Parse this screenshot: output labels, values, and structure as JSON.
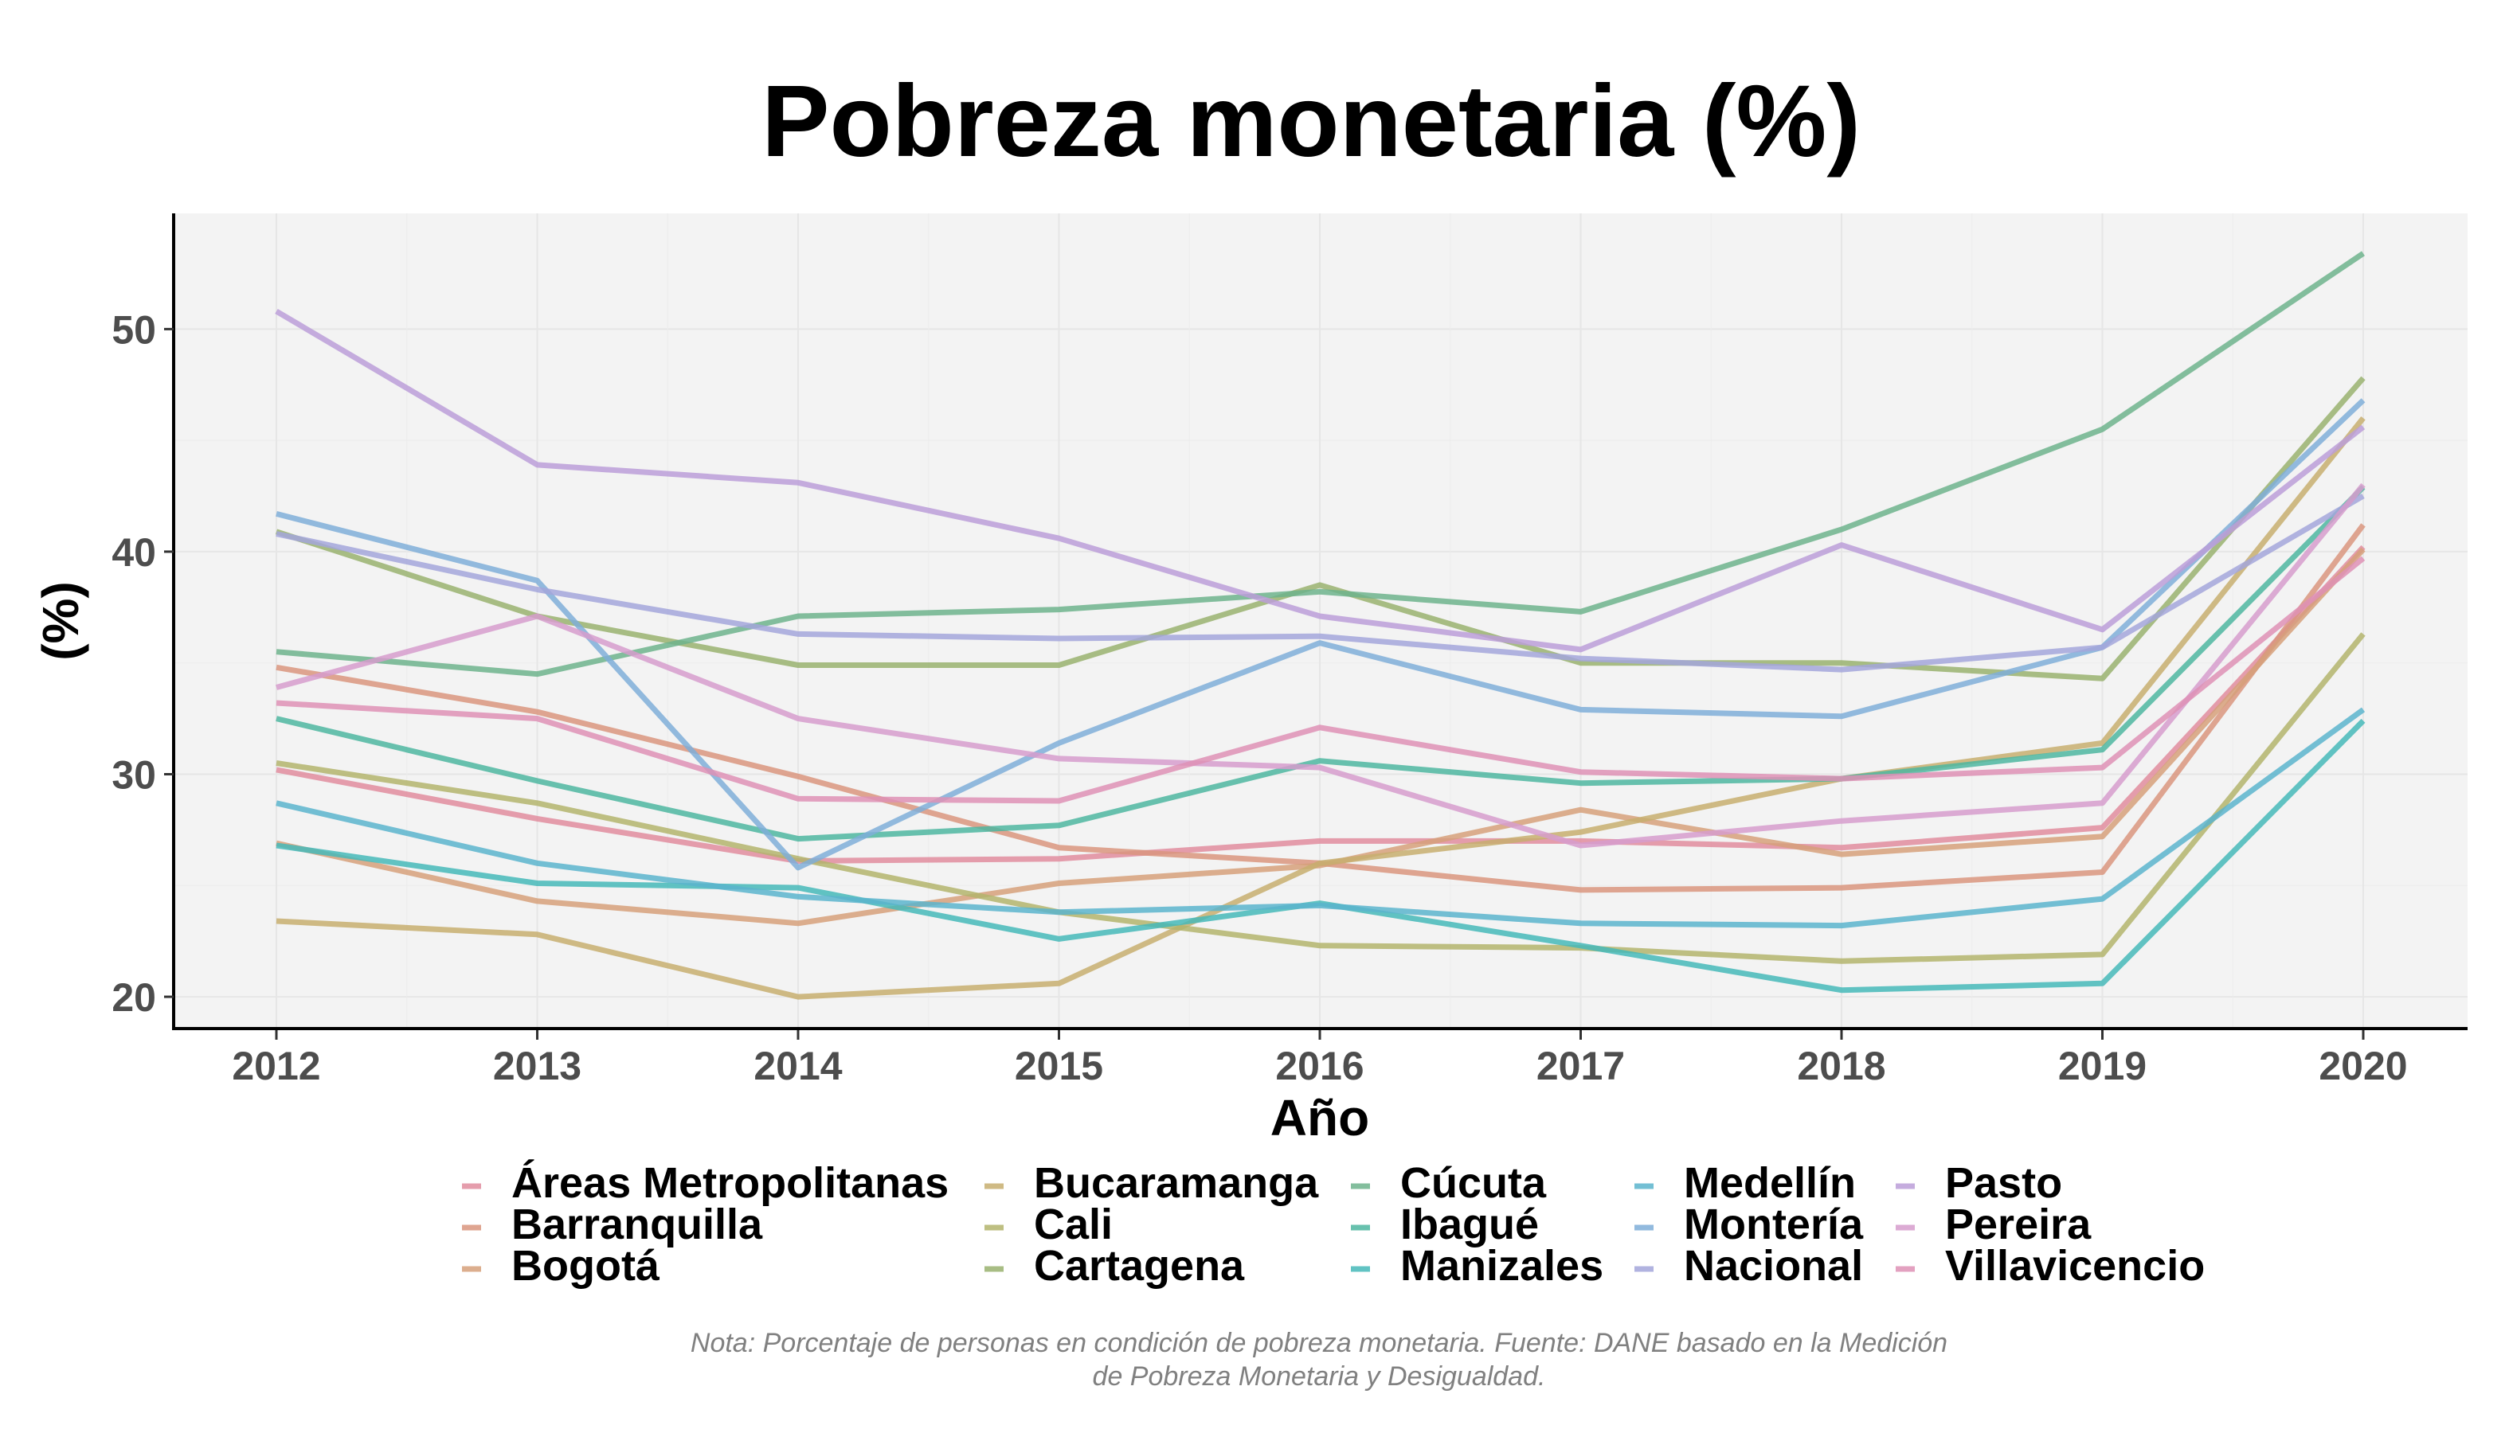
{
  "chart_data": {
    "type": "line",
    "title": "Pobreza monetaria (%)",
    "xlabel": "Año",
    "ylabel": "(%)",
    "x": [
      2012,
      2013,
      2014,
      2015,
      2016,
      2017,
      2018,
      2019,
      2020
    ],
    "x_tick_labels": [
      "2012",
      "2013",
      "2014",
      "2015",
      "2016",
      "2017",
      "2018",
      "2019",
      "2020"
    ],
    "y_ticks": [
      20,
      30,
      40,
      50
    ],
    "y_tick_labels": [
      "20",
      "30",
      "40",
      "50"
    ],
    "ylim": [
      18.5,
      55.2
    ],
    "xlim": [
      2011.6,
      2020.4
    ],
    "grid": true,
    "legend_position": "bottom",
    "note_lines": [
      "Nota: Porcentaje de personas en condición de pobreza monetaria. Fuente: DANE basado en la Medición",
      "de Pobreza Monetaria y Desigualdad."
    ],
    "series": [
      {
        "name": "Áreas Metropolitanas",
        "color": "#E08C9E",
        "values": [
          30.2,
          28.0,
          26.1,
          26.2,
          27.0,
          27.0,
          26.7,
          27.6,
          40.2
        ]
      },
      {
        "name": "Barranquilla",
        "color": "#D9957E",
        "values": [
          34.8,
          32.8,
          29.9,
          26.7,
          26.0,
          24.8,
          24.9,
          25.6,
          41.2
        ]
      },
      {
        "name": "Bogotá",
        "color": "#D6A07A",
        "values": [
          26.9,
          24.3,
          23.3,
          25.1,
          25.9,
          28.4,
          26.4,
          27.2,
          40.1
        ]
      },
      {
        "name": "Bucaramanga",
        "color": "#C7AE6E",
        "values": [
          23.4,
          22.8,
          20.0,
          20.6,
          26.0,
          27.4,
          29.8,
          31.4,
          46.0
        ]
      },
      {
        "name": "Cali",
        "color": "#B3B46C",
        "values": [
          30.5,
          28.7,
          26.2,
          23.8,
          22.3,
          22.2,
          21.6,
          21.9,
          36.3
        ]
      },
      {
        "name": "Cartagena",
        "color": "#99B26F",
        "values": [
          40.9,
          37.1,
          34.9,
          34.9,
          38.5,
          35.0,
          35.0,
          34.3,
          47.8
        ]
      },
      {
        "name": "Cúcuta",
        "color": "#6DB38C",
        "values": [
          35.5,
          34.5,
          37.1,
          37.4,
          38.2,
          37.3,
          41.0,
          45.5,
          53.4
        ]
      },
      {
        "name": "Ibagué",
        "color": "#4DB6A0",
        "values": [
          32.5,
          29.7,
          27.1,
          27.7,
          30.6,
          29.6,
          29.8,
          31.1,
          42.9
        ]
      },
      {
        "name": "Manizales",
        "color": "#45B8B8",
        "values": [
          26.8,
          25.1,
          24.9,
          22.6,
          24.2,
          22.3,
          20.3,
          20.6,
          32.4
        ]
      },
      {
        "name": "Medellín",
        "color": "#5AB4CC",
        "values": [
          28.7,
          26.0,
          24.5,
          23.8,
          24.1,
          23.3,
          23.2,
          24.4,
          32.9
        ]
      },
      {
        "name": "Montería",
        "color": "#7FAED8",
        "values": [
          41.7,
          38.7,
          25.8,
          31.4,
          35.9,
          32.9,
          32.6,
          35.7,
          46.8
        ]
      },
      {
        "name": "Nacional",
        "color": "#A3A6DA",
        "values": [
          40.8,
          38.3,
          36.3,
          36.1,
          36.2,
          35.2,
          34.7,
          35.7,
          42.5
        ]
      },
      {
        "name": "Pasto",
        "color": "#BB9ED8",
        "values": [
          50.8,
          43.9,
          43.1,
          40.6,
          37.1,
          35.6,
          40.3,
          36.5,
          45.6
        ]
      },
      {
        "name": "Pereira",
        "color": "#D69CCD",
        "values": [
          33.9,
          37.1,
          32.5,
          30.7,
          30.3,
          26.8,
          27.9,
          28.7,
          43.0
        ]
      },
      {
        "name": "Villavicencio",
        "color": "#DE91B5",
        "values": [
          33.2,
          32.5,
          28.9,
          28.8,
          32.1,
          30.1,
          29.8,
          30.3,
          39.7
        ]
      }
    ]
  }
}
